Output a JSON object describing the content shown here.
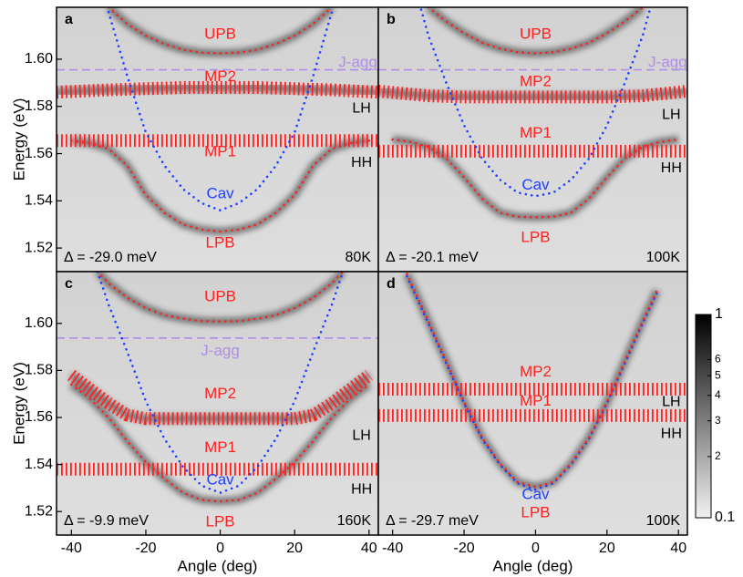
{
  "chart_data": [
    {
      "type": "line",
      "panel": "a",
      "detuning": "Δ = -29.0 meV",
      "temperature": "80K",
      "y_label": "Energy (eV)",
      "xlim": [
        -44,
        42.5
      ],
      "ylim": [
        1.51,
        1.622
      ],
      "yticks": [
        1.52,
        1.54,
        1.56,
        1.58,
        {
          "value": 1.6,
          "label": "1.60"
        }
      ],
      "annotations": [
        "LH",
        "HH"
      ],
      "series": [
        {
          "name": "UPB",
          "color": "#ff2020",
          "style": "dots",
          "x": [
            -30,
            -25,
            -20,
            -15,
            -10,
            -5,
            0,
            5,
            10,
            15,
            20,
            25,
            30
          ],
          "values": [
            1.622,
            1.615,
            1.61,
            1.6065,
            1.604,
            1.6028,
            1.6025,
            1.6028,
            1.604,
            1.6065,
            1.61,
            1.615,
            1.622
          ]
        },
        {
          "name": "J-agg",
          "color": "#b08ee6",
          "style": "dashed",
          "x": [
            -44,
            42.5
          ],
          "values": [
            1.5955,
            1.5955
          ]
        },
        {
          "name": "MP2",
          "color": "#ff2020",
          "style": "bars",
          "x": [
            -44,
            -30,
            -20,
            -10,
            0,
            10,
            20,
            30,
            42.5
          ],
          "values": [
            1.586,
            1.587,
            1.5875,
            1.588,
            1.588,
            1.588,
            1.5875,
            1.587,
            1.586
          ]
        },
        {
          "name": "MP1",
          "color": "#ff2020",
          "style": "bars",
          "x": [
            -44,
            42.5
          ],
          "values": [
            1.5655,
            1.5655
          ]
        },
        {
          "name": "Cav",
          "color": "#2040ff",
          "style": "dots",
          "x": [
            -30,
            -25,
            -20,
            -15,
            -10,
            -5,
            0,
            5,
            10,
            15,
            20,
            25,
            30
          ],
          "values": [
            1.62,
            1.593,
            1.569,
            1.555,
            1.545,
            1.539,
            1.536,
            1.539,
            1.545,
            1.555,
            1.569,
            1.593,
            1.62
          ]
        },
        {
          "name": "LPB",
          "color": "#ff2020",
          "style": "dots",
          "x": [
            -40,
            -35,
            -30,
            -25,
            -20,
            -15,
            -10,
            -5,
            0,
            5,
            10,
            15,
            20,
            25,
            30,
            35,
            40
          ],
          "values": [
            1.5655,
            1.5645,
            1.562,
            1.555,
            1.5425,
            1.535,
            1.53,
            1.5278,
            1.527,
            1.5278,
            1.53,
            1.535,
            1.5425,
            1.555,
            1.562,
            1.5645,
            1.5655
          ]
        }
      ]
    },
    {
      "type": "line",
      "panel": "b",
      "detuning": "Δ = -20.1 meV",
      "temperature": "100K",
      "xlim": [
        -44,
        42.5
      ],
      "ylim": [
        1.51,
        1.622
      ],
      "annotations": [
        "LH",
        "HH"
      ],
      "series": [
        {
          "name": "UPB",
          "color": "#ff2020",
          "style": "dots",
          "x": [
            -30,
            -25,
            -20,
            -15,
            -10,
            -5,
            0,
            5,
            10,
            15,
            20,
            25,
            30
          ],
          "values": [
            1.622,
            1.616,
            1.611,
            1.607,
            1.6045,
            1.603,
            1.6025,
            1.603,
            1.6045,
            1.607,
            1.611,
            1.616,
            1.622
          ]
        },
        {
          "name": "J-agg",
          "color": "#b08ee6",
          "style": "dashed",
          "x": [
            -44,
            42.5
          ],
          "values": [
            1.5955,
            1.5955
          ]
        },
        {
          "name": "MP2",
          "color": "#ff2020",
          "style": "bars",
          "x": [
            -44,
            -30,
            -20,
            -10,
            0,
            10,
            20,
            30,
            42.5
          ],
          "values": [
            1.5865,
            1.5845,
            1.584,
            1.584,
            1.584,
            1.584,
            1.584,
            1.5845,
            1.5865
          ]
        },
        {
          "name": "MP1",
          "color": "#ff2020",
          "style": "bars",
          "x": [
            -44,
            42.5
          ],
          "values": [
            1.561,
            1.561
          ]
        },
        {
          "name": "Cav",
          "color": "#2040ff",
          "style": "dots",
          "x": [
            -32,
            -30,
            -25,
            -20,
            -15,
            -10,
            -5,
            0,
            5,
            10,
            15,
            20,
            25,
            30,
            32
          ],
          "values": [
            1.621,
            1.61,
            1.59,
            1.572,
            1.558,
            1.549,
            1.5435,
            1.542,
            1.5435,
            1.549,
            1.558,
            1.572,
            1.59,
            1.61,
            1.621
          ]
        },
        {
          "name": "LPB",
          "color": "#ff2020",
          "style": "dots",
          "x": [
            -40,
            -35,
            -30,
            -25,
            -20,
            -15,
            -10,
            -5,
            0,
            5,
            10,
            15,
            20,
            25,
            30,
            35,
            40
          ],
          "values": [
            1.566,
            1.565,
            1.563,
            1.558,
            1.55,
            1.541,
            1.535,
            1.5333,
            1.533,
            1.5333,
            1.535,
            1.541,
            1.55,
            1.558,
            1.563,
            1.565,
            1.566
          ]
        }
      ]
    },
    {
      "type": "line",
      "panel": "c",
      "detuning": "Δ = -9.9 meV",
      "temperature": "160K",
      "y_label": "Energy (eV)",
      "x_label": "Angle (deg)",
      "xlim": [
        -44,
        42.5
      ],
      "ylim": [
        1.51,
        1.622
      ],
      "xticks": [
        -40,
        -20,
        0,
        20,
        40
      ],
      "yticks": [
        1.52,
        1.54,
        1.56,
        1.58,
        {
          "value": 1.6,
          "label": "1.60"
        }
      ],
      "annotations": [
        "LH",
        "HH"
      ],
      "series": [
        {
          "name": "UPB",
          "color": "#ff2020",
          "style": "dots",
          "x": [
            -33,
            -30,
            -25,
            -20,
            -15,
            -10,
            -5,
            0,
            5,
            10,
            15,
            20,
            25,
            30,
            33
          ],
          "values": [
            1.622,
            1.617,
            1.611,
            1.6065,
            1.6035,
            1.602,
            1.601,
            1.6008,
            1.601,
            1.602,
            1.6035,
            1.6065,
            1.611,
            1.617,
            1.622
          ]
        },
        {
          "name": "J-agg",
          "color": "#b08ee6",
          "style": "dashed",
          "x": [
            -44,
            42.5
          ],
          "values": [
            1.5938,
            1.5938
          ]
        },
        {
          "name": "MP2",
          "color": "#ff2020",
          "style": "bars",
          "x": [
            -40,
            -35,
            -30,
            -25,
            -20,
            -10,
            0,
            10,
            20,
            25,
            30,
            35,
            40
          ],
          "values": [
            1.578,
            1.572,
            1.566,
            1.561,
            1.5595,
            1.5595,
            1.5595,
            1.5595,
            1.5595,
            1.561,
            1.566,
            1.572,
            1.578
          ]
        },
        {
          "name": "MP1",
          "color": "#ff2020",
          "style": "bars",
          "x": [
            -44,
            42.5
          ],
          "values": [
            1.538,
            1.538
          ]
        },
        {
          "name": "Cav",
          "color": "#2040ff",
          "style": "dots",
          "x": [
            -33,
            -30,
            -25,
            -20,
            -15,
            -10,
            -5,
            0,
            5,
            10,
            15,
            20,
            25,
            30,
            33
          ],
          "values": [
            1.622,
            1.608,
            1.588,
            1.567,
            1.551,
            1.539,
            1.531,
            1.528,
            1.531,
            1.539,
            1.551,
            1.567,
            1.588,
            1.608,
            1.622
          ]
        },
        {
          "name": "LPB",
          "color": "#ff2020",
          "style": "dots",
          "x": [
            -40,
            -35,
            -30,
            -25,
            -20,
            -15,
            -10,
            -5,
            0,
            5,
            10,
            15,
            20,
            25,
            30,
            35,
            40
          ],
          "values": [
            1.574,
            1.568,
            1.56,
            1.55,
            1.541,
            1.534,
            1.528,
            1.525,
            1.5243,
            1.525,
            1.528,
            1.534,
            1.541,
            1.55,
            1.56,
            1.568,
            1.574
          ]
        }
      ]
    },
    {
      "type": "line",
      "panel": "d",
      "detuning": "Δ = -29.7 meV",
      "temperature": "100K",
      "x_label": "Angle (deg)",
      "xlim": [
        -44,
        42.5
      ],
      "ylim": [
        1.51,
        1.622
      ],
      "xticks": [
        -40,
        -20,
        0,
        20,
        40
      ],
      "annotations": [
        "LH",
        "HH"
      ],
      "series": [
        {
          "name": "MP2",
          "color": "#ff2020",
          "style": "bars",
          "x": [
            -44,
            42.5
          ],
          "values": [
            1.572,
            1.572
          ]
        },
        {
          "name": "MP1",
          "color": "#ff2020",
          "style": "bars",
          "x": [
            -44,
            42.5
          ],
          "values": [
            1.5608,
            1.5608
          ]
        },
        {
          "name": "Cav",
          "color": "#2040ff",
          "style": "dots",
          "x": [
            -36,
            -30,
            -25,
            -20,
            -15,
            -10,
            -5,
            0,
            5,
            10,
            15,
            20,
            25,
            30,
            34
          ],
          "values": [
            1.62,
            1.6,
            1.583,
            1.566,
            1.551,
            1.54,
            1.532,
            1.5293,
            1.532,
            1.54,
            1.551,
            1.566,
            1.583,
            1.6,
            1.613
          ]
        },
        {
          "name": "LPB",
          "color": "#ff2020",
          "style": "dots",
          "x": [
            -36,
            -30,
            -25,
            -20,
            -15,
            -10,
            -5,
            0,
            5,
            10,
            15,
            20,
            25,
            30,
            34
          ],
          "values": [
            1.621,
            1.601,
            1.584,
            1.5665,
            1.5515,
            1.5405,
            1.5325,
            1.5305,
            1.5325,
            1.5405,
            1.5515,
            1.5665,
            1.584,
            1.601,
            1.614
          ]
        }
      ]
    },
    {
      "type": "colorbar",
      "log": true,
      "ylim": [
        0.1,
        1
      ],
      "yticks": [
        1,
        {
          "value": 0.6,
          "label": "6"
        },
        {
          "value": 0.5,
          "label": "5"
        },
        {
          "value": 0.4,
          "label": "4"
        },
        {
          "value": 0.3,
          "label": "3"
        },
        {
          "value": 0.2,
          "label": "2"
        },
        0.1
      ]
    }
  ]
}
